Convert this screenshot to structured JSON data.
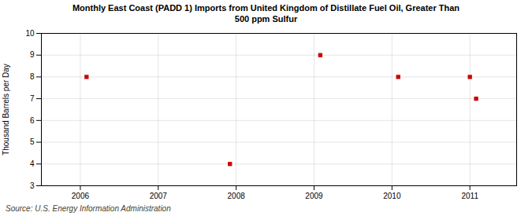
{
  "chart_data": {
    "type": "scatter",
    "title": "Monthly East Coast (PADD 1) Imports from United Kingdom of Distillate Fuel Oil, Greater Than\n500 ppm Sulfur",
    "ylabel": "Thousand Barrels per Day",
    "annotation": "Source: U.S. Energy Information Administration",
    "x": [
      2006.08,
      2007.92,
      2009.08,
      2010.08,
      2011.0,
      2011.08
    ],
    "values": [
      8,
      4,
      9,
      8,
      8,
      7
    ],
    "color": "#cc0000",
    "marker": "square",
    "xlim": [
      2005.5,
      2011.6
    ],
    "ylim": [
      3,
      10
    ],
    "xticks": [
      2006,
      2007,
      2008,
      2009,
      2010,
      2011
    ],
    "yticks": [
      3,
      4,
      5,
      6,
      7,
      8,
      9,
      10
    ],
    "grid": true
  }
}
